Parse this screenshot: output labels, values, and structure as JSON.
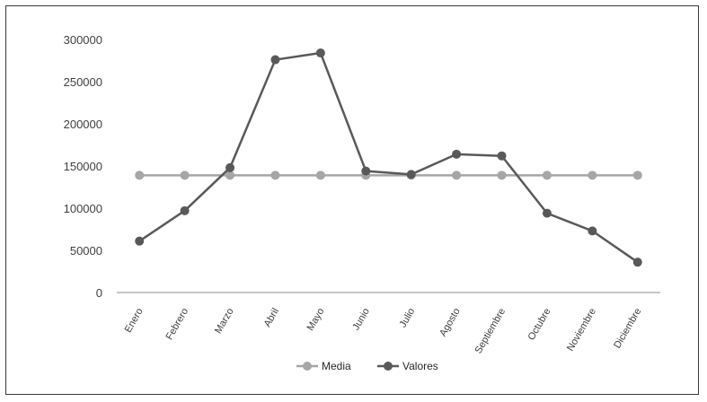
{
  "chart_data": {
    "type": "line",
    "categories": [
      "Enero",
      "Febrero",
      "Marzo",
      "Abril",
      "Mayo",
      "Junio",
      "Julio",
      "Agosto",
      "Septiembre",
      "Octubre",
      "Noviembre",
      "Diciembre"
    ],
    "series": [
      {
        "name": "Media",
        "color": "#a6a6a6",
        "values": [
          139000,
          139000,
          139000,
          139000,
          139000,
          139000,
          139000,
          139000,
          139000,
          139000,
          139000,
          139000
        ]
      },
      {
        "name": "Valores",
        "color": "#595959",
        "values": [
          61000,
          97000,
          148000,
          276000,
          284000,
          144000,
          140000,
          164000,
          162000,
          94000,
          73000,
          36000
        ]
      }
    ],
    "yticks": [
      "300000",
      "250000",
      "200000",
      "150000",
      "100000",
      "50000",
      "0"
    ],
    "ylim": [
      0,
      300000
    ],
    "title": "",
    "xlabel": "",
    "ylabel": "",
    "grid": false,
    "legend": "bottom"
  }
}
